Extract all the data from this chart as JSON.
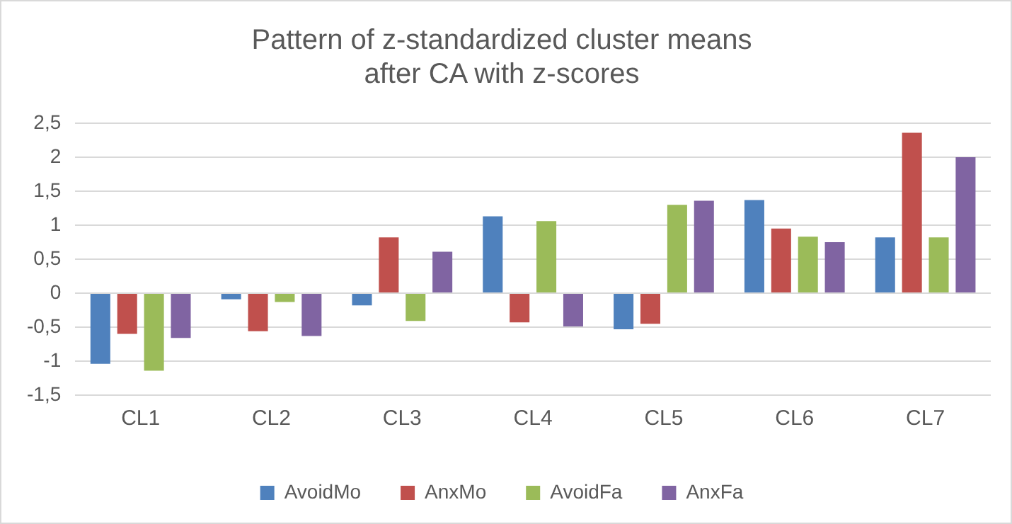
{
  "chart_data": {
    "type": "bar",
    "title": "Pattern of z-standardized cluster means\nafter CA with z-scores",
    "categories": [
      "CL1",
      "CL2",
      "CL3",
      "CL4",
      "CL5",
      "CL6",
      "CL7"
    ],
    "series": [
      {
        "name": "AvoidMo",
        "color": "#4f81bd",
        "values": [
          -1.04,
          -0.09,
          -0.18,
          1.13,
          -0.53,
          1.37,
          0.82
        ]
      },
      {
        "name": "AnxMo",
        "color": "#c0504d",
        "values": [
          -0.6,
          -0.56,
          0.82,
          -0.43,
          -0.45,
          0.95,
          2.36
        ]
      },
      {
        "name": "AvoidFa",
        "color": "#9bbb59",
        "values": [
          -1.14,
          -0.13,
          -0.41,
          1.06,
          1.3,
          0.83,
          0.82
        ]
      },
      {
        "name": "AnxFa",
        "color": "#8064a2",
        "values": [
          -0.66,
          -0.63,
          0.61,
          -0.49,
          1.36,
          0.75,
          2.0
        ]
      }
    ],
    "ylim": [
      -1.5,
      2.5
    ],
    "yticks": [
      {
        "value": -1.5,
        "label": "-1,5"
      },
      {
        "value": -1,
        "label": "-1"
      },
      {
        "value": -0.5,
        "label": "-0,5"
      },
      {
        "value": 0,
        "label": "0"
      },
      {
        "value": 0.5,
        "label": "0,5"
      },
      {
        "value": 1,
        "label": "1"
      },
      {
        "value": 1.5,
        "label": "1,5"
      },
      {
        "value": 2,
        "label": "2"
      },
      {
        "value": 2.5,
        "label": "2,5"
      }
    ],
    "grid": "y",
    "legend": "bottom"
  }
}
